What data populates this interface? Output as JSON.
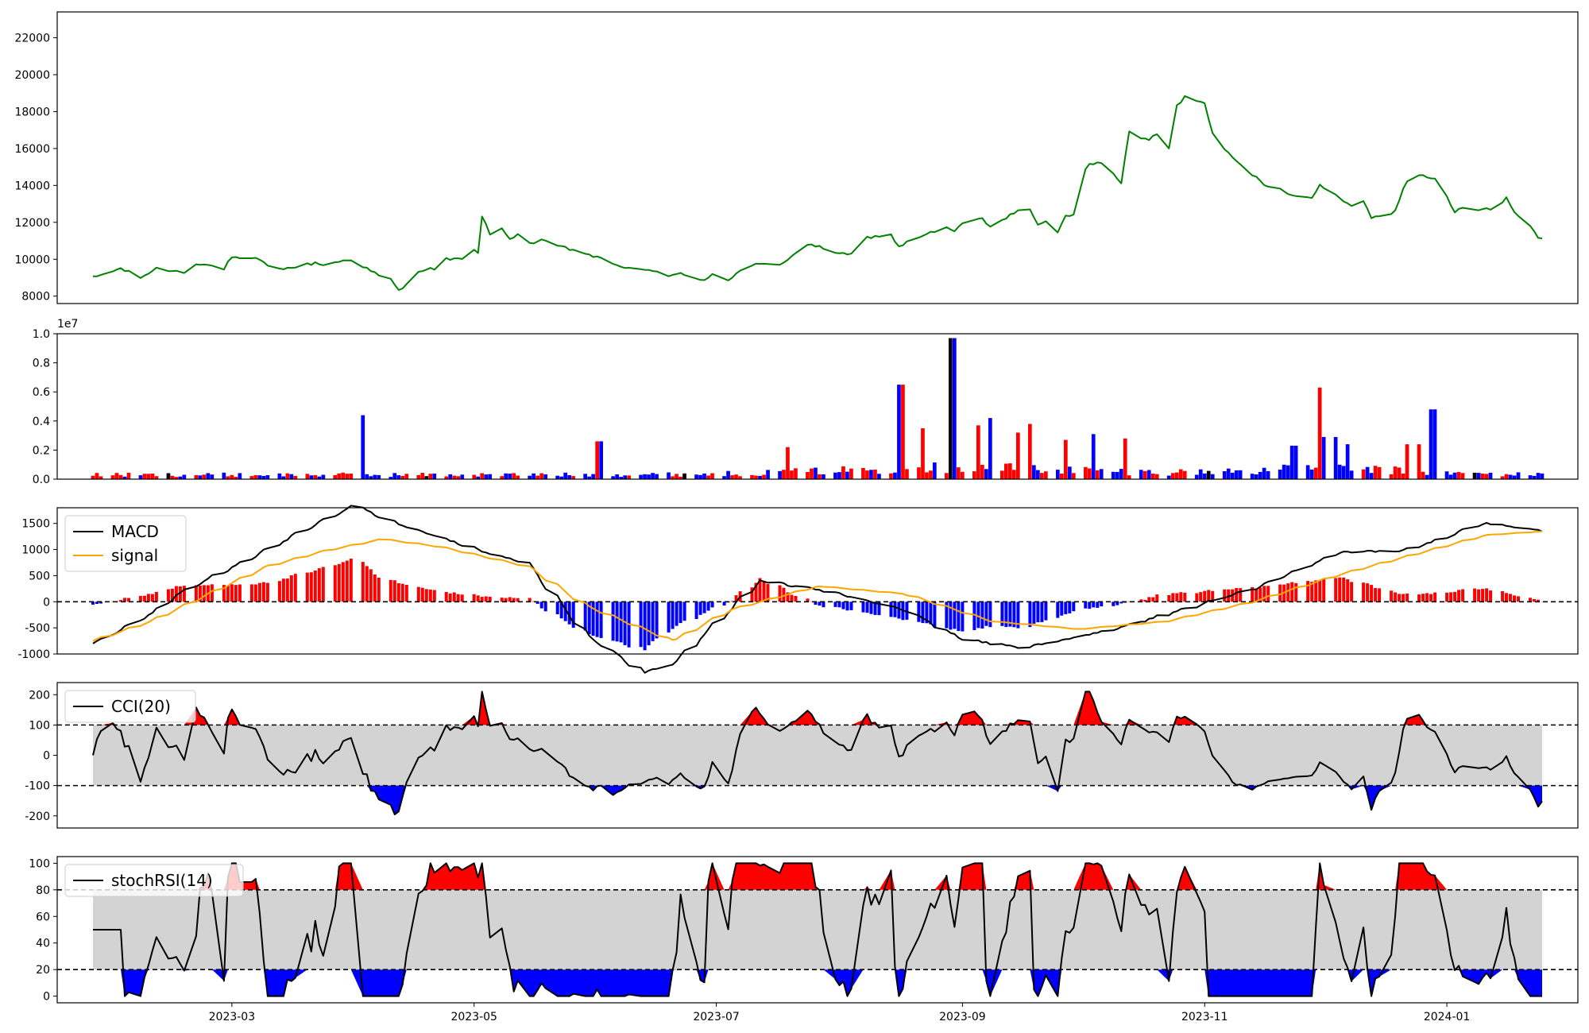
{
  "colors": {
    "price": "#008000",
    "up": "#ff0000",
    "down": "#0000ff",
    "flat": "#000000",
    "macd": "#000000",
    "signal": "#ffa500",
    "band": "#d3d3d3",
    "frame": "#000000"
  },
  "x_axis": {
    "start": "2023-01-25",
    "end": "2024-01-25",
    "ticks": [
      "2023-03",
      "2023-05",
      "2023-07",
      "2023-09",
      "2023-11",
      "2024-01"
    ]
  },
  "chart_data": [
    {
      "type": "line",
      "series": [
        {
          "values": []
        }
      ],
      "xlim": [
        "2023-01-16",
        "2024-02-03"
      ],
      "ylim": [
        7600,
        23400
      ],
      "yticks": [
        "8000",
        "10000",
        "12000",
        "14000",
        "16000",
        "18000",
        "20000",
        "22000"
      ],
      "grid": false,
      "keypoints": [
        [
          "2023-01-25",
          9000
        ],
        [
          "2023-02-01",
          9500
        ],
        [
          "2023-02-06",
          9000
        ],
        [
          "2023-02-10",
          9500
        ],
        [
          "2023-02-17",
          9300
        ],
        [
          "2023-02-20",
          9800
        ],
        [
          "2023-02-27",
          9500
        ],
        [
          "2023-03-01",
          10100
        ],
        [
          "2023-03-03",
          10000
        ],
        [
          "2023-03-08",
          10000
        ],
        [
          "2023-03-10",
          9600
        ],
        [
          "2023-03-15",
          9500
        ],
        [
          "2023-03-22",
          9800
        ],
        [
          "2023-03-24",
          9700
        ],
        [
          "2023-03-31",
          10000
        ],
        [
          "2023-04-04",
          9500
        ],
        [
          "2023-04-07",
          9100
        ],
        [
          "2023-04-10",
          8900
        ],
        [
          "2023-04-12",
          8300
        ],
        [
          "2023-04-14",
          8600
        ],
        [
          "2023-04-17",
          9400
        ],
        [
          "2023-04-21",
          9500
        ],
        [
          "2023-04-24",
          10000
        ],
        [
          "2023-04-28",
          10000
        ],
        [
          "2023-04-30",
          10500
        ],
        [
          "2023-05-02",
          10400
        ],
        [
          "2023-05-03",
          12300
        ],
        [
          "2023-05-05",
          11400
        ],
        [
          "2023-05-08",
          11600
        ],
        [
          "2023-05-10",
          11100
        ],
        [
          "2023-05-12",
          11400
        ],
        [
          "2023-05-14",
          10800
        ],
        [
          "2023-05-18",
          11000
        ],
        [
          "2023-05-24",
          10600
        ],
        [
          "2023-05-28",
          10400
        ],
        [
          "2023-06-02",
          10000
        ],
        [
          "2023-06-06",
          9700
        ],
        [
          "2023-06-10",
          9400
        ],
        [
          "2023-06-16",
          9400
        ],
        [
          "2023-06-19",
          9100
        ],
        [
          "2023-06-22",
          9200
        ],
        [
          "2023-06-24",
          9000
        ],
        [
          "2023-06-28",
          8900
        ],
        [
          "2023-06-30",
          9200
        ],
        [
          "2023-07-04",
          8900
        ],
        [
          "2023-07-08",
          9500
        ],
        [
          "2023-07-10",
          9700
        ],
        [
          "2023-07-14",
          9700
        ],
        [
          "2023-07-16",
          9500
        ],
        [
          "2023-07-20",
          10200
        ],
        [
          "2023-07-24",
          10800
        ],
        [
          "2023-07-28",
          10600
        ],
        [
          "2023-08-03",
          10200
        ],
        [
          "2023-08-05",
          10400
        ],
        [
          "2023-08-08",
          11200
        ],
        [
          "2023-08-14",
          11300
        ],
        [
          "2023-08-16",
          10700
        ],
        [
          "2023-08-22",
          11300
        ],
        [
          "2023-08-28",
          11700
        ],
        [
          "2023-08-30",
          11500
        ],
        [
          "2023-09-02",
          12100
        ],
        [
          "2023-09-06",
          12200
        ],
        [
          "2023-09-08",
          11700
        ],
        [
          "2023-09-10",
          12000
        ],
        [
          "2023-09-16",
          12800
        ],
        [
          "2023-09-18",
          12700
        ],
        [
          "2023-09-20",
          11800
        ],
        [
          "2023-09-22",
          12000
        ],
        [
          "2023-09-25",
          11500
        ],
        [
          "2023-09-27",
          12300
        ],
        [
          "2023-09-29",
          12500
        ],
        [
          "2023-10-01",
          14800
        ],
        [
          "2023-10-03",
          15100
        ],
        [
          "2023-10-07",
          15300
        ],
        [
          "2023-10-11",
          14100
        ],
        [
          "2023-10-13",
          16900
        ],
        [
          "2023-10-15",
          16600
        ],
        [
          "2023-10-18",
          16500
        ],
        [
          "2023-10-21",
          16900
        ],
        [
          "2023-10-23",
          16000
        ],
        [
          "2023-10-25",
          18300
        ],
        [
          "2023-10-27",
          18800
        ],
        [
          "2023-11-01",
          18500
        ],
        [
          "2023-11-03",
          16800
        ],
        [
          "2023-11-06",
          16000
        ],
        [
          "2023-11-10",
          15200
        ],
        [
          "2023-11-12",
          14600
        ],
        [
          "2023-11-14",
          14400
        ],
        [
          "2023-11-16",
          14000
        ],
        [
          "2023-11-20",
          13800
        ],
        [
          "2023-11-24",
          13400
        ],
        [
          "2023-11-28",
          13400
        ],
        [
          "2023-11-30",
          14000
        ],
        [
          "2023-12-04",
          13500
        ],
        [
          "2023-12-07",
          13000
        ],
        [
          "2023-12-09",
          12800
        ],
        [
          "2023-12-11",
          13200
        ],
        [
          "2023-12-13",
          12300
        ],
        [
          "2023-12-17",
          12300
        ],
        [
          "2023-12-19",
          12700
        ],
        [
          "2023-12-21",
          13800
        ],
        [
          "2023-12-23",
          14700
        ],
        [
          "2023-12-29",
          14300
        ],
        [
          "2024-01-01",
          13400
        ],
        [
          "2024-01-03",
          12600
        ],
        [
          "2024-01-05",
          12800
        ],
        [
          "2024-01-09",
          12600
        ],
        [
          "2024-01-11",
          12800
        ],
        [
          "2024-01-13",
          12500
        ],
        [
          "2024-01-16",
          13400
        ],
        [
          "2024-01-18",
          12500
        ],
        [
          "2024-01-20",
          12300
        ],
        [
          "2024-01-22",
          11800
        ],
        [
          "2024-01-24",
          11200
        ],
        [
          "2024-01-27",
          11000
        ]
      ]
    },
    {
      "type": "bar",
      "series": [
        {
          "name": "up",
          "values": []
        }
      ],
      "ylim": [
        0,
        10000000
      ],
      "yticks": [
        "0.0",
        "0.2",
        "0.4",
        "0.6",
        "0.8",
        "1.0"
      ],
      "offset_text": "1e7",
      "spikes": [
        [
          0.184,
          0.44
        ],
        [
          0.35,
          0.26
        ],
        [
          0.478,
          0.22
        ],
        [
          0.558,
          0.65
        ],
        [
          0.57,
          0.35
        ],
        [
          0.592,
          0.97
        ],
        [
          0.61,
          0.37
        ],
        [
          0.62,
          0.42
        ],
        [
          0.643,
          0.38
        ],
        [
          0.671,
          0.27
        ],
        [
          0.689,
          0.31
        ],
        [
          0.712,
          0.28
        ],
        [
          0.829,
          0.23
        ],
        [
          0.848,
          0.63
        ],
        [
          0.853,
          0.29
        ],
        [
          0.925,
          0.48
        ],
        [
          0.91,
          0.24
        ],
        [
          0.865,
          0.24
        ],
        [
          0.639,
          0.32
        ]
      ]
    },
    {
      "type": "line",
      "series": [
        {
          "name": "MACD",
          "values": []
        },
        {
          "name": "signal",
          "values": []
        }
      ],
      "ylim": [
        -1000,
        1800
      ],
      "yticks": [
        "-1000",
        "-500",
        "0",
        "500",
        "1000",
        "1500"
      ],
      "legend": "upper-left",
      "macd_keys": [
        [
          0,
          -1000
        ],
        [
          0.04,
          -300
        ],
        [
          0.06,
          200
        ],
        [
          0.1,
          900
        ],
        [
          0.14,
          1600
        ],
        [
          0.18,
          2300
        ],
        [
          0.2,
          2000
        ],
        [
          0.26,
          1300
        ],
        [
          0.3,
          900
        ],
        [
          0.34,
          -800
        ],
        [
          0.38,
          -1700
        ],
        [
          0.4,
          -1500
        ],
        [
          0.46,
          500
        ],
        [
          0.5,
          300
        ],
        [
          0.56,
          -200
        ],
        [
          0.6,
          -900
        ],
        [
          0.64,
          -1100
        ],
        [
          0.7,
          -700
        ],
        [
          0.74,
          -300
        ],
        [
          0.8,
          300
        ],
        [
          0.86,
          1200
        ],
        [
          0.9,
          1200
        ],
        [
          0.93,
          1500
        ],
        [
          0.96,
          1900
        ],
        [
          1.0,
          1700
        ]
      ],
      "signal_keys": [
        [
          0,
          -1000
        ],
        [
          0.04,
          -500
        ],
        [
          0.08,
          200
        ],
        [
          0.12,
          900
        ],
        [
          0.16,
          1300
        ],
        [
          0.2,
          1600
        ],
        [
          0.24,
          1400
        ],
        [
          0.3,
          900
        ],
        [
          0.34,
          -100
        ],
        [
          0.4,
          -1000
        ],
        [
          0.44,
          -200
        ],
        [
          0.5,
          400
        ],
        [
          0.56,
          200
        ],
        [
          0.62,
          -500
        ],
        [
          0.68,
          -700
        ],
        [
          0.74,
          -500
        ],
        [
          0.8,
          0
        ],
        [
          0.86,
          700
        ],
        [
          0.92,
          1300
        ],
        [
          0.96,
          1700
        ],
        [
          1.0,
          1800
        ]
      ]
    },
    {
      "type": "line",
      "series": [
        {
          "name": "CCI(20)",
          "values": []
        }
      ],
      "ylim": [
        -240,
        240
      ],
      "yticks": [
        "-200",
        "-100",
        "0",
        "100",
        "200"
      ],
      "hlines": [
        100,
        -100
      ],
      "legend": "upper-left"
    },
    {
      "type": "line",
      "series": [
        {
          "name": "stochRSI(14)",
          "values": []
        }
      ],
      "ylim": [
        -5,
        105
      ],
      "yticks": [
        "0",
        "20",
        "40",
        "60",
        "80",
        "100"
      ],
      "hlines": [
        80,
        20
      ],
      "legend": "upper-left"
    }
  ]
}
